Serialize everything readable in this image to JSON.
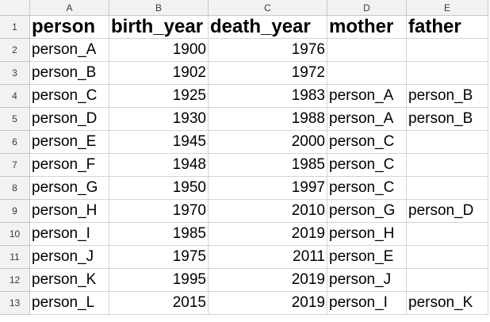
{
  "columns": [
    "A",
    "B",
    "C",
    "D",
    "E"
  ],
  "row_numbers": [
    "1",
    "2",
    "3",
    "4",
    "5",
    "6",
    "7",
    "8",
    "9",
    "10",
    "11",
    "12",
    "13"
  ],
  "header": [
    "person",
    "birth_year",
    "death_year",
    "mother",
    "father"
  ],
  "rows": [
    [
      "person_A",
      "1900",
      "1976",
      "",
      ""
    ],
    [
      "person_B",
      "1902",
      "1972",
      "",
      ""
    ],
    [
      "person_C",
      "1925",
      "1983",
      "person_A",
      "person_B"
    ],
    [
      "person_D",
      "1930",
      "1988",
      "person_A",
      "person_B"
    ],
    [
      "person_E",
      "1945",
      "2000",
      "person_C",
      ""
    ],
    [
      "person_F",
      "1948",
      "1985",
      "person_C",
      ""
    ],
    [
      "person_G",
      "1950",
      "1997",
      "person_C",
      ""
    ],
    [
      "person_H",
      "1970",
      "2010",
      "person_G",
      "person_D"
    ],
    [
      "person_I",
      "1985",
      "2019",
      "person_H",
      ""
    ],
    [
      "person_J",
      "1975",
      "2011",
      "person_E",
      ""
    ],
    [
      "person_K",
      "1995",
      "2019",
      "person_J",
      ""
    ],
    [
      "person_L",
      "2015",
      "2019",
      "person_I",
      "person_K"
    ]
  ]
}
